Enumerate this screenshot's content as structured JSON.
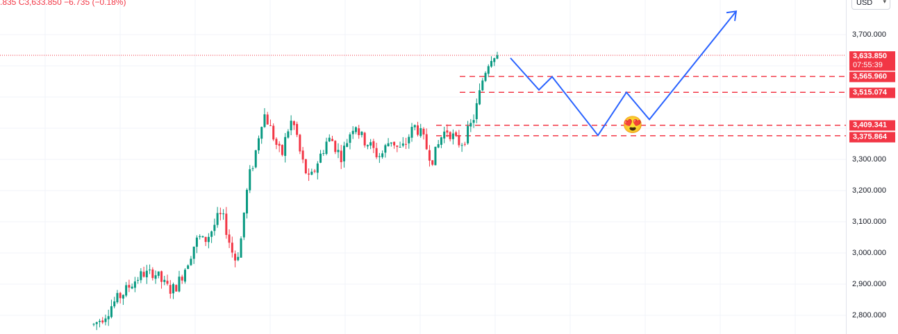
{
  "header": {
    "ohlc_text": ".835  C3,633.850  −6.735 (−0.18%)"
  },
  "price_axis": {
    "currency": "USD",
    "ticks": [
      "3,700.000",
      "3,300.000",
      "3,200.000",
      "3,100.000",
      "3,000.000",
      "2,900.000",
      "2,800.000"
    ],
    "tick_values": [
      3700,
      3300,
      3200,
      3100,
      3000,
      2900,
      2800
    ]
  },
  "labels": {
    "last_price": "3,633.850",
    "countdown": "07:55:39",
    "level1": "3,565.960",
    "level2": "3,515.074",
    "level3": "3,409.341",
    "level4": "3,375.864"
  },
  "colors": {
    "up": "#089981",
    "down": "#f23645",
    "projection": "#2962ff",
    "level_line": "#f23645",
    "grid": "#f0f3fa"
  },
  "chart_data": {
    "type": "candlestick",
    "symbol_currency": "USD",
    "last_price": 3633.85,
    "change": -6.735,
    "change_pct": -0.18,
    "horizontal_levels": [
      3565.96,
      3515.074,
      3409.341,
      3375.864
    ],
    "y_range": [
      2765,
      3800
    ],
    "close_path": [
      2770,
      2782,
      2795,
      2810,
      2835,
      2850,
      2865,
      2880,
      2898,
      2912,
      2925,
      2935,
      2930,
      2940,
      2925,
      2905,
      2890,
      2880,
      2895,
      2920,
      2955,
      2990,
      3030,
      3050,
      3035,
      3055,
      3080,
      3110,
      3120,
      3070,
      3010,
      2975,
      3030,
      3160,
      3250,
      3300,
      3380,
      3450,
      3420,
      3380,
      3340,
      3310,
      3380,
      3420,
      3400,
      3320,
      3270,
      3230,
      3260,
      3300,
      3330,
      3365,
      3360,
      3330,
      3310,
      3350,
      3390,
      3420,
      3380,
      3360,
      3350,
      3330,
      3310,
      3320,
      3350,
      3365,
      3340,
      3330,
      3350,
      3385,
      3405,
      3390,
      3360,
      3320,
      3300,
      3340,
      3380,
      3395,
      3380,
      3360,
      3350,
      3370,
      3400,
      3440,
      3500,
      3570,
      3610,
      3640,
      3634
    ],
    "projection_path": [
      {
        "t": 0,
        "price": 3625
      },
      {
        "t": 1,
        "price": 3523
      },
      {
        "t": 2,
        "price": 3565
      },
      {
        "t": 3,
        "price": 3377
      },
      {
        "t": 4,
        "price": 3515
      },
      {
        "t": 5,
        "price": 3428
      },
      {
        "t": 6,
        "price": 3775
      }
    ]
  }
}
